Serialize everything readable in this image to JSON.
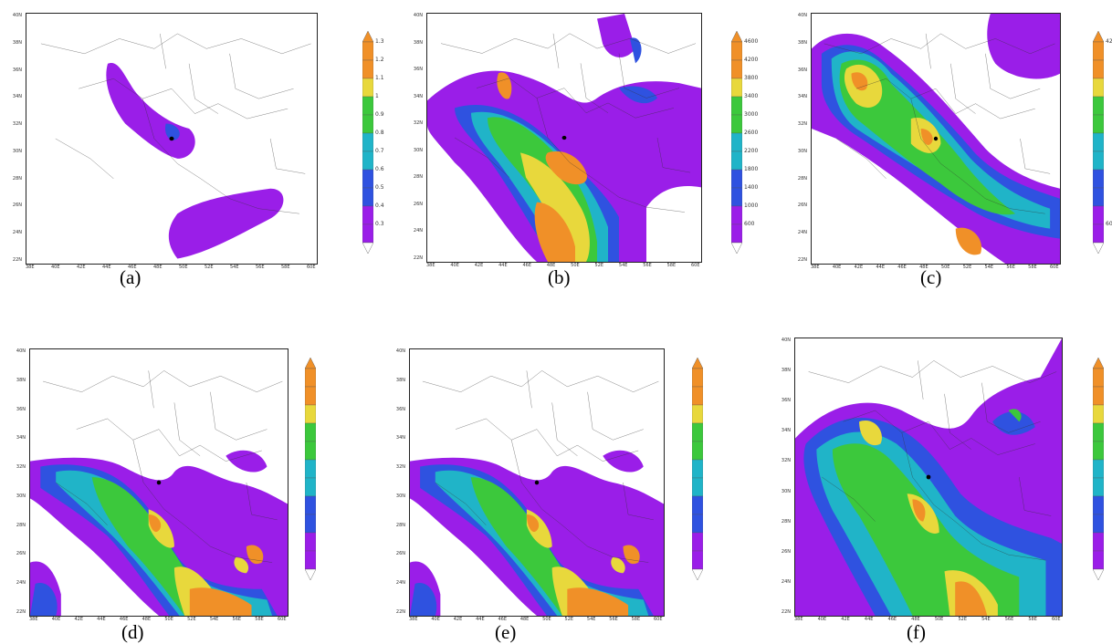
{
  "panels": [
    {
      "caption": "(a)",
      "lat_ticks": [
        "40N",
        "38N",
        "36N",
        "34N",
        "32N",
        "30N",
        "28N",
        "26N",
        "24N",
        "22N"
      ],
      "lon_ticks": [
        "38E",
        "40E",
        "42E",
        "44E",
        "46E",
        "48E",
        "50E",
        "52E",
        "54E",
        "56E",
        "58E",
        "60E"
      ],
      "colorbar": [
        "1.3",
        "1.2",
        "1.1",
        "1",
        "0.9",
        "0.8",
        "0.7",
        "0.6",
        "0.5",
        "0.4",
        "0.3"
      ]
    },
    {
      "caption": "(b)",
      "lat_ticks": [
        "40N",
        "38N",
        "36N",
        "34N",
        "32N",
        "30N",
        "28N",
        "26N",
        "24N",
        "22N"
      ],
      "lon_ticks": [
        "38E",
        "40E",
        "42E",
        "44E",
        "46E",
        "48E",
        "50E",
        "52E",
        "54E",
        "56E",
        "58E",
        "60E"
      ],
      "colorbar": [
        "4600",
        "4200",
        "3800",
        "3400",
        "3000",
        "2600",
        "2200",
        "1800",
        "1400",
        "1000",
        "600"
      ]
    },
    {
      "caption": "(c)",
      "lat_ticks": [
        "40N",
        "38N",
        "36N",
        "34N",
        "32N",
        "30N",
        "28N",
        "26N",
        "24N",
        "22N"
      ],
      "lon_ticks": [
        "38E",
        "40E",
        "42E",
        "44E",
        "46E",
        "48E",
        "50E",
        "52E",
        "54E",
        "56E",
        "58E",
        "60E"
      ],
      "colorbar": [
        "42",
        "",
        "",
        "",
        "",
        "",
        "",
        "",
        "",
        "",
        "60"
      ]
    },
    {
      "caption": "(d)",
      "lat_ticks": [
        "40N",
        "38N",
        "36N",
        "34N",
        "32N",
        "30N",
        "28N",
        "26N",
        "24N",
        "22N"
      ],
      "lon_ticks": [
        "38E",
        "40E",
        "42E",
        "44E",
        "46E",
        "48E",
        "50E",
        "52E",
        "54E",
        "56E",
        "58E",
        "60E"
      ],
      "colorbar": [
        "",
        "",
        "",
        "",
        "",
        "",
        "",
        "",
        "",
        "",
        ""
      ]
    },
    {
      "caption": "(e)",
      "lat_ticks": [
        "40N",
        "38N",
        "36N",
        "34N",
        "32N",
        "30N",
        "28N",
        "26N",
        "24N",
        "22N"
      ],
      "lon_ticks": [
        "38E",
        "40E",
        "42E",
        "44E",
        "46E",
        "48E",
        "50E",
        "52E",
        "54E",
        "56E",
        "58E",
        "60E"
      ],
      "colorbar": [
        "",
        "",
        "",
        "",
        "",
        "",
        "",
        "",
        "",
        "",
        ""
      ]
    },
    {
      "caption": "(f)",
      "lat_ticks": [
        "40N",
        "38N",
        "36N",
        "34N",
        "32N",
        "30N",
        "28N",
        "26N",
        "24N",
        "22N"
      ],
      "lon_ticks": [
        "38E",
        "40E",
        "42E",
        "44E",
        "46E",
        "48E",
        "50E",
        "52E",
        "54E",
        "56E",
        "58E",
        "60E"
      ],
      "colorbar": [
        "",
        "",
        "",
        "",
        "",
        "",
        "",
        "",
        "",
        "",
        ""
      ]
    }
  ],
  "colors": {
    "violet": "#9a1ee8",
    "blue": "#2f52e0",
    "cyan": "#20b4c8",
    "green": "#3cc83c",
    "yellow": "#e8d83c",
    "orange": "#f09028",
    "border": "#222222"
  }
}
